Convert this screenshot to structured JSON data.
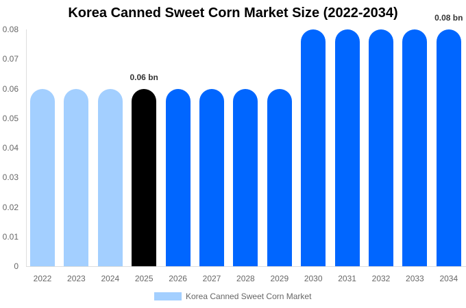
{
  "chart_data": {
    "type": "bar",
    "title": "Korea Canned Sweet Corn Market Size (2022-2034)",
    "xlabel": "",
    "ylabel": "",
    "ylim": [
      0,
      0.08
    ],
    "yticks": [
      "0",
      "0.01",
      "0.02",
      "0.03",
      "0.04",
      "0.05",
      "0.06",
      "0.07",
      "0.08"
    ],
    "categories": [
      "2022",
      "2023",
      "2024",
      "2025",
      "2026",
      "2027",
      "2028",
      "2029",
      "2030",
      "2031",
      "2032",
      "2033",
      "2034"
    ],
    "series": [
      {
        "name": "Korea Canned Sweet Corn Market",
        "values": [
          0.06,
          0.06,
          0.06,
          0.06,
          0.06,
          0.06,
          0.06,
          0.06,
          0.08,
          0.08,
          0.08,
          0.08,
          0.08
        ]
      }
    ],
    "bar_colors": [
      "#a3cfff",
      "#a3cfff",
      "#a3cfff",
      "#000000",
      "#0066ff",
      "#0066ff",
      "#0066ff",
      "#0066ff",
      "#0066ff",
      "#0066ff",
      "#0066ff",
      "#0066ff",
      "#0066ff"
    ],
    "annotations": [
      {
        "category": "2025",
        "text": "0.06 bn"
      },
      {
        "category": "2034",
        "text": "0.08 bn"
      }
    ],
    "legend": {
      "position": "bottom",
      "label": "Korea Canned Sweet Corn Market",
      "color": "#a3cfff"
    },
    "grid": false
  }
}
